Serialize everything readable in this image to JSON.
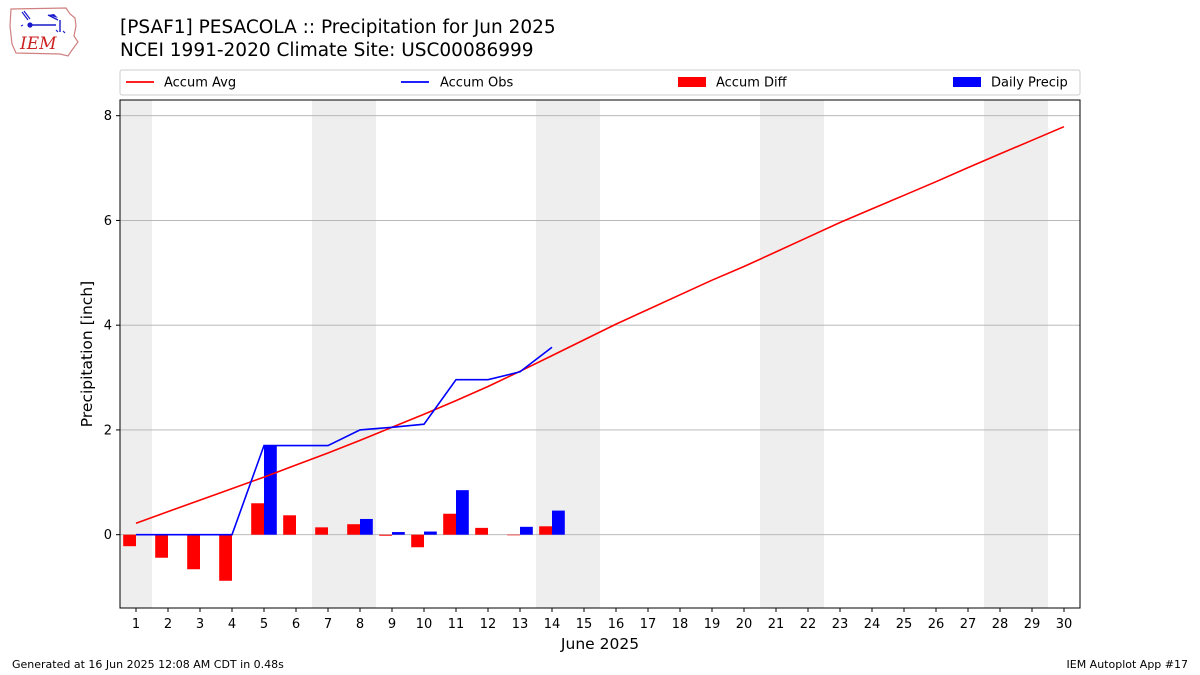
{
  "header": {
    "title": "[PSAF1] PESACOLA :: Precipitation for Jun 2025",
    "subtitle": "NCEI 1991-2020 Climate Site: USC00086999",
    "logo_text": "IEM"
  },
  "footer": {
    "left": "Generated at 16 Jun 2025 12:08 AM CDT in 0.48s",
    "right": "IEM Autoplot App #17"
  },
  "colors": {
    "accum_avg": "#ff0000",
    "accum_obs": "#0000ff",
    "accum_diff": "#ff0000",
    "daily_precip": "#0000ff",
    "weekend_shade": "#eeeeee",
    "grid": "#b0b0b0"
  },
  "chart_data": {
    "type": "bar",
    "xlabel": "June 2025",
    "ylabel": "Precipitation [inch]",
    "xlim": [
      0.5,
      30.5
    ],
    "ylim": [
      -1.4,
      8.3
    ],
    "yticks": [
      0,
      2,
      4,
      6,
      8
    ],
    "xticks": [
      1,
      2,
      3,
      4,
      5,
      6,
      7,
      8,
      9,
      10,
      11,
      12,
      13,
      14,
      15,
      16,
      17,
      18,
      19,
      20,
      21,
      22,
      23,
      24,
      25,
      26,
      27,
      28,
      29,
      30
    ],
    "grid": "horizontal",
    "legend_position": "top",
    "weekend_shading": [
      [
        0.5,
        1.5
      ],
      [
        6.5,
        8.5
      ],
      [
        13.5,
        15.5
      ],
      [
        20.5,
        22.5
      ],
      [
        27.5,
        29.5
      ]
    ],
    "series": [
      {
        "name": "Accum Avg",
        "kind": "line",
        "x": [
          1,
          2,
          3,
          4,
          5,
          6,
          7,
          8,
          9,
          10,
          11,
          12,
          13,
          14,
          15,
          16,
          17,
          18,
          19,
          20,
          21,
          22,
          23,
          24,
          25,
          26,
          27,
          28,
          29,
          30
        ],
        "values": [
          0.22,
          0.44,
          0.66,
          0.88,
          1.1,
          1.33,
          1.56,
          1.8,
          2.05,
          2.3,
          2.56,
          2.83,
          3.12,
          3.42,
          3.72,
          4.02,
          4.3,
          4.58,
          4.86,
          5.12,
          5.4,
          5.68,
          5.96,
          6.22,
          6.48,
          6.74,
          7.01,
          7.27,
          7.53,
          7.79
        ]
      },
      {
        "name": "Accum Obs",
        "kind": "line",
        "x": [
          1,
          2,
          3,
          4,
          5,
          6,
          7,
          8,
          9,
          10,
          11,
          12,
          13,
          14
        ],
        "values": [
          0.0,
          0.0,
          0.0,
          0.0,
          1.7,
          1.7,
          1.7,
          2.0,
          2.05,
          2.11,
          2.96,
          2.96,
          3.11,
          3.58
        ]
      },
      {
        "name": "Accum Diff",
        "kind": "bar",
        "x": [
          1,
          2,
          3,
          4,
          5,
          6,
          7,
          8,
          9,
          10,
          11,
          12,
          13,
          14
        ],
        "values": [
          -0.22,
          -0.44,
          -0.66,
          -0.88,
          0.6,
          0.37,
          0.14,
          0.2,
          -0.02,
          -0.24,
          0.4,
          0.13,
          -0.01,
          0.16
        ]
      },
      {
        "name": "Daily Precip",
        "kind": "bar",
        "x": [
          1,
          2,
          3,
          4,
          5,
          6,
          7,
          8,
          9,
          10,
          11,
          12,
          13,
          14
        ],
        "values": [
          0,
          0,
          0,
          0,
          1.7,
          0,
          0,
          0.3,
          0.05,
          0.06,
          0.85,
          0,
          0.15,
          0.46
        ]
      }
    ]
  }
}
